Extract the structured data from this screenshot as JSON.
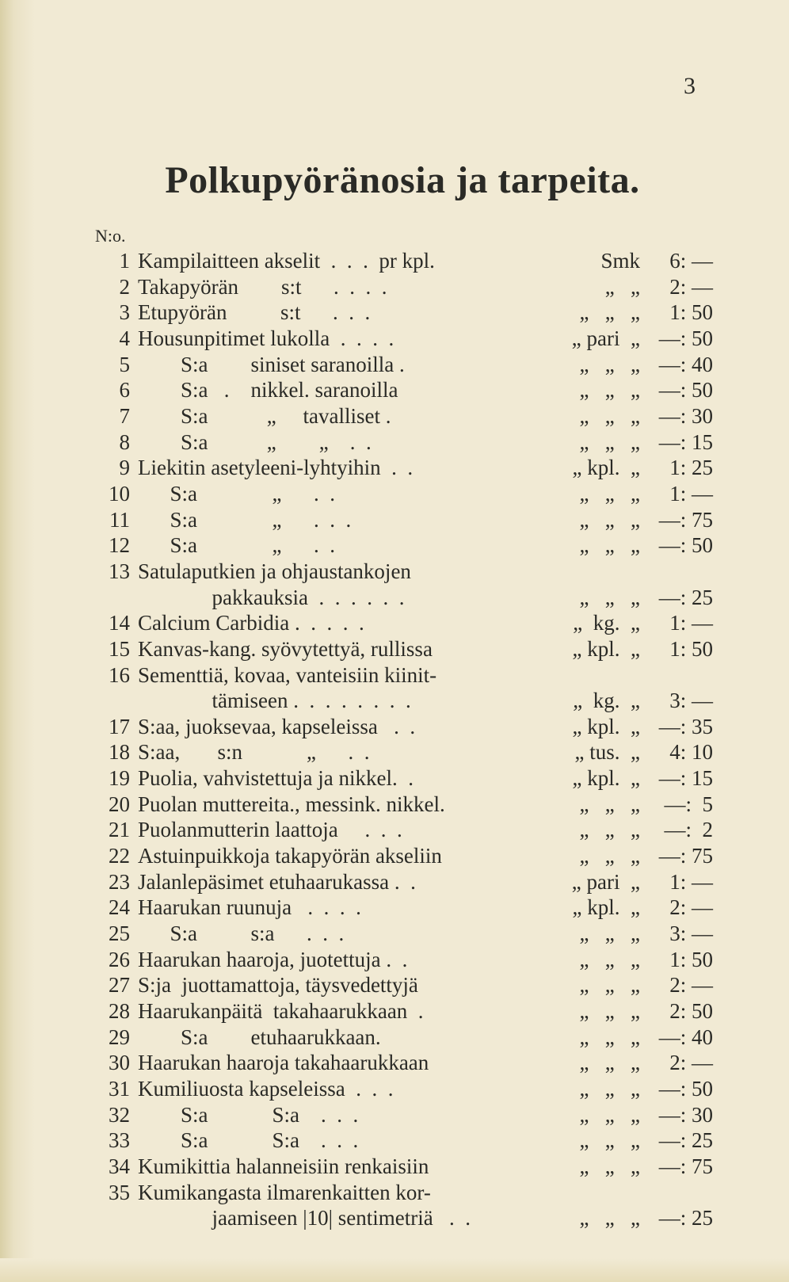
{
  "page_number": "3",
  "title": "Polkupyöränosia ja tarpeita.",
  "label_no": "N:o.",
  "items": [
    {
      "n": "1",
      "desc": "Kampilaitteen akselit  .  .  .  pr kpl.",
      "unit": "Smk",
      "price": "6: —"
    },
    {
      "n": "2",
      "desc": "Takapyörän        s:t      .  .  .  .",
      "unit": "„   „",
      "price": "2: —"
    },
    {
      "n": "3",
      "desc": "Etupyörän          s:t      .  .  .",
      "unit": "„   „   „",
      "price": "1: 50"
    },
    {
      "n": "4",
      "desc": "Housunpitimet lukolla  .  .  .  .",
      "unit": "„ pari  „",
      "price": "—: 50"
    },
    {
      "n": "5",
      "desc": "        S:a        siniset saranoilla .",
      "unit": "„   „   „",
      "price": "—: 40"
    },
    {
      "n": "6",
      "desc": "        S:a   .    nikkel. saranoilla",
      "unit": "„   „   „",
      "price": "—: 50"
    },
    {
      "n": "7",
      "desc": "        S:a           „     tavalliset .",
      "unit": "„   „   „",
      "price": "—: 30"
    },
    {
      "n": "8",
      "desc": "        S:a           „        „    .  .",
      "unit": "„   „   „",
      "price": "—: 15"
    },
    {
      "n": "9",
      "desc": "Liekitin asetyleeni-lyhtyihin  .  .",
      "unit": "„ kpl.  „",
      "price": "1: 25"
    },
    {
      "n": "10",
      "desc": "      S:a              „      .  .",
      "unit": "„   „   „",
      "price": "1: —"
    },
    {
      "n": "11",
      "desc": "      S:a              „      .  .  .",
      "unit": "„   „   „",
      "price": "—: 75"
    },
    {
      "n": "12",
      "desc": "      S:a              „      .  .",
      "unit": "„   „   „",
      "price": "—: 50"
    },
    {
      "n": "13",
      "desc": "Satulaputkien ja ohjaustankojen",
      "unit": "",
      "price": ""
    },
    {
      "n": "",
      "desc": "          pakkauksia  .  .  .  .  .  .",
      "unit": "„   „   „",
      "price": "—: 25",
      "cont": true
    },
    {
      "n": "14",
      "desc": "Calcium Carbidia .  .  .  .  .",
      "unit": "„  kg.  „",
      "price": "1: —"
    },
    {
      "n": "15",
      "desc": "Kanvas-kang. syövytettyä, rullissa",
      "unit": "„ kpl.  „",
      "price": "1: 50"
    },
    {
      "n": "16",
      "desc": "Sementtiä, kovaa, vanteisiin kiinit-",
      "unit": "",
      "price": ""
    },
    {
      "n": "",
      "desc": "          tämiseen .  .  .  .  .  .  .  .",
      "unit": "„  kg.  „",
      "price": "3: —",
      "cont": true
    },
    {
      "n": "17",
      "desc": "S:aa, juoksevaa, kapseleissa   .  .",
      "unit": "„ kpl.  „",
      "price": "—: 35"
    },
    {
      "n": "18",
      "desc": "S:aa,       s:n            „      .  .",
      "unit": "„ tus.  „",
      "price": "4: 10"
    },
    {
      "n": "19",
      "desc": "Puolia, vahvistettuja ja nikkel.  .",
      "unit": "„ kpl.  „",
      "price": "—: 15"
    },
    {
      "n": "20",
      "desc": "Puolan muttereita., messink. nikkel.",
      "unit": "„   „   „",
      "price": "—:  5"
    },
    {
      "n": "21",
      "desc": "Puolanmutterin laattoja     .  .  .",
      "unit": "„   „   „",
      "price": "—:  2"
    },
    {
      "n": "22",
      "desc": "Astuinpuikkoja takapyörän akseliin",
      "unit": "„   „   „",
      "price": "—: 75"
    },
    {
      "n": "23",
      "desc": "Jalanlepäsimet etuhaarukassa .  .",
      "unit": "„ pari  „",
      "price": "1: —"
    },
    {
      "n": "24",
      "desc": "Haarukan ruunuja   .  .  .  .",
      "unit": "„ kpl.  „",
      "price": "2: —"
    },
    {
      "n": "25",
      "desc": "      S:a          s:a      .  .  .",
      "unit": "„   „   „",
      "price": "3: —"
    },
    {
      "n": "26",
      "desc": "Haarukan haaroja, juotettuja .  .",
      "unit": "„   „   „",
      "price": "1: 50"
    },
    {
      "n": "27",
      "desc": "S:ja  juottamattoja, täysvedettyjä",
      "unit": "„   „   „",
      "price": "2: —"
    },
    {
      "n": "28",
      "desc": "Haarukanpäitä  takahaarukkaan  .",
      "unit": "„   „   „",
      "price": "2: 50"
    },
    {
      "n": "29",
      "desc": "        S:a        etuhaarukkaan.",
      "unit": "„   „   „",
      "price": "—: 40"
    },
    {
      "n": "30",
      "desc": "Haarukan haaroja takahaarukkaan",
      "unit": "„   „   „",
      "price": "2: —"
    },
    {
      "n": "31",
      "desc": "Kumiliuosta kapseleissa  .  .  .",
      "unit": "„   „   „",
      "price": "—: 50"
    },
    {
      "n": "32",
      "desc": "        S:a            S:a    .  .  .",
      "unit": "„   „   „",
      "price": "—: 30"
    },
    {
      "n": "33",
      "desc": "        S:a            S:a    .  .  .",
      "unit": "„   „   „",
      "price": "—: 25"
    },
    {
      "n": "34",
      "desc": "Kumikittia halanneisiin renkaisiin",
      "unit": "„   „   „",
      "price": "—: 75"
    },
    {
      "n": "35",
      "desc": "Kumikangasta ilmarenkaitten kor-",
      "unit": "",
      "price": ""
    },
    {
      "n": "",
      "desc": "          jaamiseen |10| sentimetriä   .  .",
      "unit": "„   „   „",
      "price": "—: 25",
      "cont": true
    }
  ]
}
